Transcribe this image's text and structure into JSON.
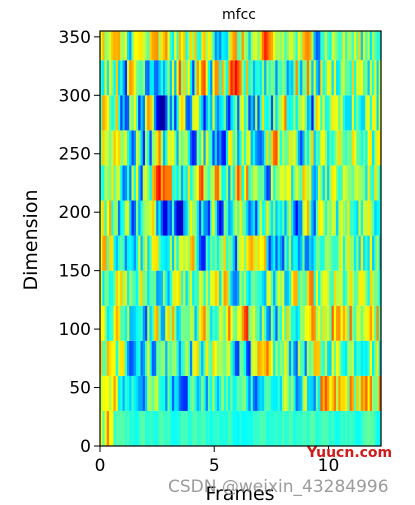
{
  "chart_data": {
    "type": "heatmap",
    "title": "mfcc",
    "xlabel": "Frames",
    "ylabel": "Dimension",
    "xlim": [
      0,
      12.3
    ],
    "ylim": [
      0,
      355
    ],
    "x_ticks": [
      0,
      5,
      10
    ],
    "y_ticks": [
      0,
      50,
      100,
      150,
      200,
      250,
      300,
      350
    ],
    "n_coefficients": 13,
    "band_height": 30,
    "colormap": "jet",
    "legend": "none",
    "grid": false
  },
  "watermarks": {
    "site": "Yuucn.com",
    "author": "CSDN @weixin_43284996"
  }
}
